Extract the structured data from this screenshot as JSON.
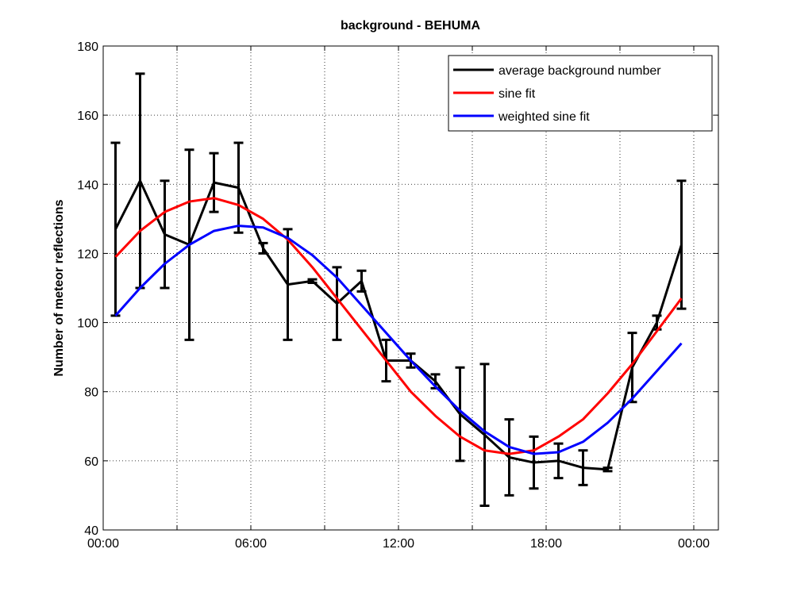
{
  "chart_data": {
    "type": "line",
    "title": "background - BEHUMA",
    "y_label": "Number of meteor reflections",
    "x": [
      0.5,
      1.5,
      2.5,
      3.5,
      4.5,
      5.5,
      6.5,
      7.5,
      8.5,
      9.5,
      10.5,
      11.5,
      12.5,
      13.5,
      14.5,
      15.5,
      16.5,
      17.5,
      18.5,
      19.5,
      20.5,
      21.5,
      22.5,
      23.5
    ],
    "series": [
      {
        "name": "average background number",
        "color": "#000000",
        "values": [
          127,
          141,
          125.5,
          122.5,
          140.5,
          139,
          121.5,
          111,
          112,
          105.5,
          112,
          89,
          89,
          83,
          73.5,
          67.5,
          61,
          59.5,
          60,
          58,
          57.5,
          87,
          100,
          122.5
        ],
        "errors": [
          25,
          31,
          15.5,
          27.5,
          8.5,
          13,
          1.5,
          16,
          0.5,
          10.5,
          3,
          6,
          2,
          2,
          13.5,
          20.5,
          11,
          7.5,
          5,
          5,
          0.5,
          10,
          2,
          18.5
        ]
      },
      {
        "name": "sine fit",
        "color": "#ff0000",
        "values": [
          119,
          126.5,
          132,
          135,
          136,
          134,
          130,
          124,
          116,
          107,
          98,
          89,
          80,
          73,
          67,
          63,
          62,
          63,
          67,
          72,
          79.5,
          88,
          97.5,
          107
        ]
      },
      {
        "name": "weighted sine fit",
        "color": "#0000ff",
        "values": [
          102,
          110,
          117,
          122.5,
          126.5,
          128,
          127.5,
          124.5,
          119.5,
          113,
          105,
          97,
          89,
          81.5,
          74.5,
          68.5,
          64,
          62,
          62.5,
          65.5,
          71,
          78,
          86,
          94
        ]
      }
    ],
    "xlim": [
      0,
      25
    ],
    "xticks": [
      {
        "value": 0,
        "label": "00:00"
      },
      {
        "value": 6,
        "label": "06:00"
      },
      {
        "value": 12,
        "label": "12:00"
      },
      {
        "value": 18,
        "label": "18:00"
      },
      {
        "value": 24,
        "label": "00:00"
      }
    ],
    "xminorticks": [
      3,
      9,
      15,
      21
    ],
    "ylim": [
      40,
      180
    ],
    "yticks": [
      40,
      60,
      80,
      100,
      120,
      140,
      160,
      180
    ],
    "grid": true,
    "legend": "top-right"
  }
}
